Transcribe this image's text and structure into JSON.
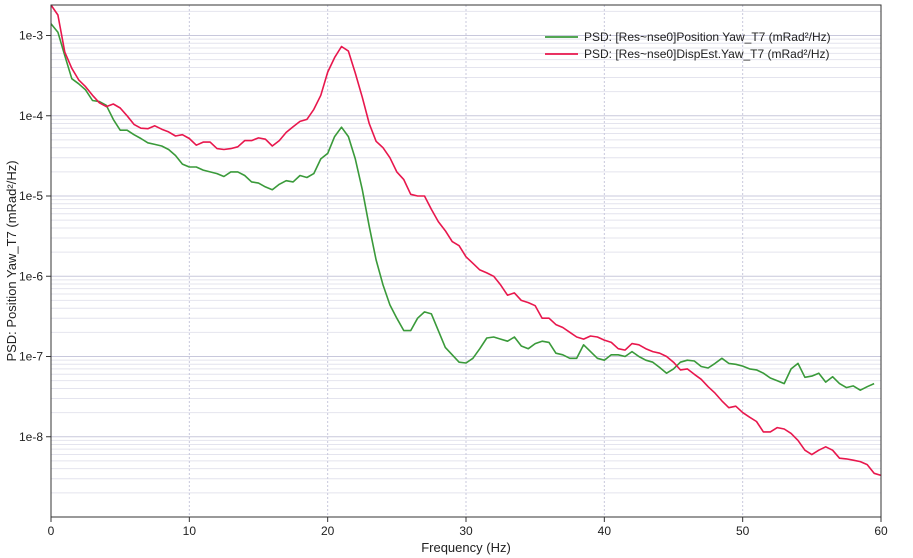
{
  "chart_data": {
    "type": "line",
    "title": "",
    "xlabel": "Frequency (Hz)",
    "ylabel": "PSD: Position Yaw_T7 (mRad²/Hz)",
    "xlim": [
      0,
      60
    ],
    "ylim": [
      1e-09,
      0.0024
    ],
    "yscale": "log",
    "grid": true,
    "legend_position": "top-right",
    "x_ticks": [
      "0",
      "10",
      "20",
      "30",
      "40",
      "50",
      "60"
    ],
    "y_ticks": [
      "1e-3",
      "1e-4",
      "1e-5",
      "1e-6",
      "1e-7",
      "1e-8"
    ],
    "series": [
      {
        "name": "PSD: [Res~nse0]Position Yaw_T7 (mRad²/Hz)",
        "color": "#3a9a3a",
        "points": [
          [
            0,
            0.0014
          ],
          [
            0.5,
            0.0011
          ],
          [
            1,
            0.00056
          ],
          [
            1.5,
            0.00029
          ],
          [
            2,
            0.00025
          ],
          [
            2.5,
            0.00021
          ],
          [
            3,
            0.000155
          ],
          [
            3.5,
            0.00015
          ],
          [
            4,
            0.000135
          ],
          [
            4.5,
            9e-05
          ],
          [
            5,
            6.6e-05
          ],
          [
            5.5,
            6.6e-05
          ],
          [
            6,
            5.8e-05
          ],
          [
            6.5,
            5.2e-05
          ],
          [
            7,
            4.6e-05
          ],
          [
            7.5,
            4.4e-05
          ],
          [
            8,
            4.2e-05
          ],
          [
            8.5,
            3.8e-05
          ],
          [
            9,
            3.2e-05
          ],
          [
            9.5,
            2.5e-05
          ],
          [
            10,
            2.3e-05
          ],
          [
            10.5,
            2.3e-05
          ],
          [
            11,
            2.1e-05
          ],
          [
            11.5,
            2e-05
          ],
          [
            12,
            1.9e-05
          ],
          [
            12.5,
            1.75e-05
          ],
          [
            13,
            2e-05
          ],
          [
            13.5,
            2e-05
          ],
          [
            14,
            1.8e-05
          ],
          [
            14.5,
            1.5e-05
          ],
          [
            15,
            1.45e-05
          ],
          [
            15.5,
            1.3e-05
          ],
          [
            16,
            1.2e-05
          ],
          [
            16.5,
            1.4e-05
          ],
          [
            17,
            1.55e-05
          ],
          [
            17.5,
            1.5e-05
          ],
          [
            18,
            1.8e-05
          ],
          [
            18.5,
            1.7e-05
          ],
          [
            19,
            1.9e-05
          ],
          [
            19.5,
            2.9e-05
          ],
          [
            20,
            3.4e-05
          ],
          [
            20.5,
            5.5e-05
          ],
          [
            21,
            7.2e-05
          ],
          [
            21.5,
            5.5e-05
          ],
          [
            22,
            2.9e-05
          ],
          [
            22.5,
            1.2e-05
          ],
          [
            23,
            4.2e-06
          ],
          [
            23.5,
            1.6e-06
          ],
          [
            24,
            7.8e-07
          ],
          [
            24.5,
            4.4e-07
          ],
          [
            25,
            3e-07
          ],
          [
            25.5,
            2.1e-07
          ],
          [
            26,
            2.1e-07
          ],
          [
            26.5,
            3e-07
          ],
          [
            27,
            3.6e-07
          ],
          [
            27.5,
            3.4e-07
          ],
          [
            28,
            2.1e-07
          ],
          [
            28.5,
            1.3e-07
          ],
          [
            29,
            1.05e-07
          ],
          [
            29.5,
            8.5e-08
          ],
          [
            30,
            8.3e-08
          ],
          [
            30.5,
            9.5e-08
          ],
          [
            31,
            1.25e-07
          ],
          [
            31.5,
            1.7e-07
          ],
          [
            32,
            1.75e-07
          ],
          [
            32.5,
            1.65e-07
          ],
          [
            33,
            1.55e-07
          ],
          [
            33.5,
            1.75e-07
          ],
          [
            34,
            1.35e-07
          ],
          [
            34.5,
            1.25e-07
          ],
          [
            35,
            1.45e-07
          ],
          [
            35.5,
            1.55e-07
          ],
          [
            36,
            1.5e-07
          ],
          [
            36.5,
            1.1e-07
          ],
          [
            37,
            1.05e-07
          ],
          [
            37.5,
            9.5e-08
          ],
          [
            38,
            9.5e-08
          ],
          [
            38.5,
            1.4e-07
          ],
          [
            39,
            1.15e-07
          ],
          [
            39.5,
            9.5e-08
          ],
          [
            40,
            9e-08
          ],
          [
            40.5,
            1.05e-07
          ],
          [
            41,
            1.05e-07
          ],
          [
            41.5,
            1e-07
          ],
          [
            42,
            1.15e-07
          ],
          [
            42.5,
            1e-07
          ],
          [
            43,
            9e-08
          ],
          [
            43.5,
            8.5e-08
          ],
          [
            44,
            7.3e-08
          ],
          [
            44.5,
            6.2e-08
          ],
          [
            45,
            7e-08
          ],
          [
            45.5,
            8.5e-08
          ],
          [
            46,
            9e-08
          ],
          [
            46.5,
            8.8e-08
          ],
          [
            47,
            7.5e-08
          ],
          [
            47.5,
            7.2e-08
          ],
          [
            48,
            8.2e-08
          ],
          [
            48.5,
            9.5e-08
          ],
          [
            49,
            8.2e-08
          ],
          [
            49.5,
            8e-08
          ],
          [
            50,
            7.6e-08
          ],
          [
            50.5,
            7e-08
          ],
          [
            51,
            6.8e-08
          ],
          [
            51.5,
            6.2e-08
          ],
          [
            52,
            5.4e-08
          ],
          [
            52.5,
            5e-08
          ],
          [
            53,
            4.6e-08
          ],
          [
            53.5,
            7e-08
          ],
          [
            54,
            8.2e-08
          ],
          [
            54.5,
            5.5e-08
          ],
          [
            55,
            5.7e-08
          ],
          [
            55.5,
            6.2e-08
          ],
          [
            56,
            4.8e-08
          ],
          [
            56.5,
            5.6e-08
          ],
          [
            57,
            4.6e-08
          ],
          [
            57.5,
            4.1e-08
          ],
          [
            58,
            4.3e-08
          ],
          [
            58.5,
            3.8e-08
          ],
          [
            59,
            4.2e-08
          ],
          [
            59.5,
            4.6e-08
          ]
        ]
      },
      {
        "name": "PSD: [Res~nse0]DispEst.Yaw_T7 (mRad²/Hz)",
        "color": "#e8174d",
        "points": [
          [
            0,
            0.0024
          ],
          [
            0.5,
            0.0018
          ],
          [
            1,
            0.00062
          ],
          [
            1.5,
            0.00039
          ],
          [
            2,
            0.00028
          ],
          [
            2.5,
            0.00023
          ],
          [
            3,
            0.00018
          ],
          [
            3.5,
            0.000145
          ],
          [
            4,
            0.00013
          ],
          [
            4.5,
            0.00014
          ],
          [
            5,
            0.000125
          ],
          [
            5.5,
            0.0001
          ],
          [
            6,
            7.8e-05
          ],
          [
            6.5,
            7e-05
          ],
          [
            7,
            6.9e-05
          ],
          [
            7.5,
            7.5e-05
          ],
          [
            8,
            6.8e-05
          ],
          [
            8.5,
            6.3e-05
          ],
          [
            9,
            5.6e-05
          ],
          [
            9.5,
            5.8e-05
          ],
          [
            10,
            5.2e-05
          ],
          [
            10.5,
            4.3e-05
          ],
          [
            11,
            4.7e-05
          ],
          [
            11.5,
            4.7e-05
          ],
          [
            12,
            3.9e-05
          ],
          [
            12.5,
            3.8e-05
          ],
          [
            13,
            3.9e-05
          ],
          [
            13.5,
            4.1e-05
          ],
          [
            14,
            4.9e-05
          ],
          [
            14.5,
            4.9e-05
          ],
          [
            15,
            5.3e-05
          ],
          [
            15.5,
            5.1e-05
          ],
          [
            16,
            4.2e-05
          ],
          [
            16.5,
            4.9e-05
          ],
          [
            17,
            6.2e-05
          ],
          [
            17.5,
            7.3e-05
          ],
          [
            18,
            8.5e-05
          ],
          [
            18.5,
            9e-05
          ],
          [
            19,
            0.00012
          ],
          [
            19.5,
            0.00018
          ],
          [
            20,
            0.00035
          ],
          [
            20.5,
            0.00053
          ],
          [
            21,
            0.00073
          ],
          [
            21.5,
            0.00064
          ],
          [
            22,
            0.00034
          ],
          [
            22.5,
            0.00017
          ],
          [
            23,
            8e-05
          ],
          [
            23.5,
            4.8e-05
          ],
          [
            24,
            4e-05
          ],
          [
            24.5,
            3e-05
          ],
          [
            25,
            2e-05
          ],
          [
            25.5,
            1.6e-05
          ],
          [
            26,
            1.05e-05
          ],
          [
            26.5,
            1e-05
          ],
          [
            27,
            1e-05
          ],
          [
            27.5,
            6.8e-06
          ],
          [
            28,
            4.8e-06
          ],
          [
            28.5,
            3.7e-06
          ],
          [
            29,
            2.7e-06
          ],
          [
            29.5,
            2.4e-06
          ],
          [
            30,
            1.75e-06
          ],
          [
            30.5,
            1.45e-06
          ],
          [
            31,
            1.2e-06
          ],
          [
            31.5,
            1.1e-06
          ],
          [
            32,
            1e-06
          ],
          [
            32.5,
            7.8e-07
          ],
          [
            33,
            5.8e-07
          ],
          [
            33.5,
            6.2e-07
          ],
          [
            34,
            5e-07
          ],
          [
            34.5,
            4.7e-07
          ],
          [
            35,
            4.3e-07
          ],
          [
            35.5,
            3e-07
          ],
          [
            36,
            3e-07
          ],
          [
            36.5,
            2.5e-07
          ],
          [
            37,
            2.3e-07
          ],
          [
            37.5,
            2e-07
          ],
          [
            38,
            1.75e-07
          ],
          [
            38.5,
            1.65e-07
          ],
          [
            39,
            1.8e-07
          ],
          [
            39.5,
            1.75e-07
          ],
          [
            40,
            1.6e-07
          ],
          [
            40.5,
            1.5e-07
          ],
          [
            41,
            1.25e-07
          ],
          [
            41.5,
            1.2e-07
          ],
          [
            42,
            1.45e-07
          ],
          [
            42.5,
            1.4e-07
          ],
          [
            43,
            1.25e-07
          ],
          [
            43.5,
            1.15e-07
          ],
          [
            44,
            1.1e-07
          ],
          [
            44.5,
            1e-07
          ],
          [
            45,
            8.5e-08
          ],
          [
            45.5,
            6.8e-08
          ],
          [
            46,
            7e-08
          ],
          [
            46.5,
            6e-08
          ],
          [
            47,
            5.2e-08
          ],
          [
            47.5,
            4.2e-08
          ],
          [
            48,
            3.5e-08
          ],
          [
            48.5,
            2.8e-08
          ],
          [
            49,
            2.3e-08
          ],
          [
            49.5,
            2.4e-08
          ],
          [
            50,
            2e-08
          ],
          [
            50.5,
            1.75e-08
          ],
          [
            51,
            1.55e-08
          ],
          [
            51.5,
            1.15e-08
          ],
          [
            52,
            1.15e-08
          ],
          [
            52.5,
            1.3e-08
          ],
          [
            53,
            1.25e-08
          ],
          [
            53.5,
            1.1e-08
          ],
          [
            54,
            9e-09
          ],
          [
            54.5,
            6.8e-09
          ],
          [
            55,
            6e-09
          ],
          [
            55.5,
            6.8e-09
          ],
          [
            56,
            7.5e-09
          ],
          [
            56.5,
            6.8e-09
          ],
          [
            57,
            5.4e-09
          ],
          [
            57.5,
            5.3e-09
          ],
          [
            58,
            5.1e-09
          ],
          [
            58.5,
            4.9e-09
          ],
          [
            59,
            4.5e-09
          ],
          [
            59.5,
            3.5e-09
          ],
          [
            60,
            3.3e-09
          ]
        ]
      }
    ]
  }
}
